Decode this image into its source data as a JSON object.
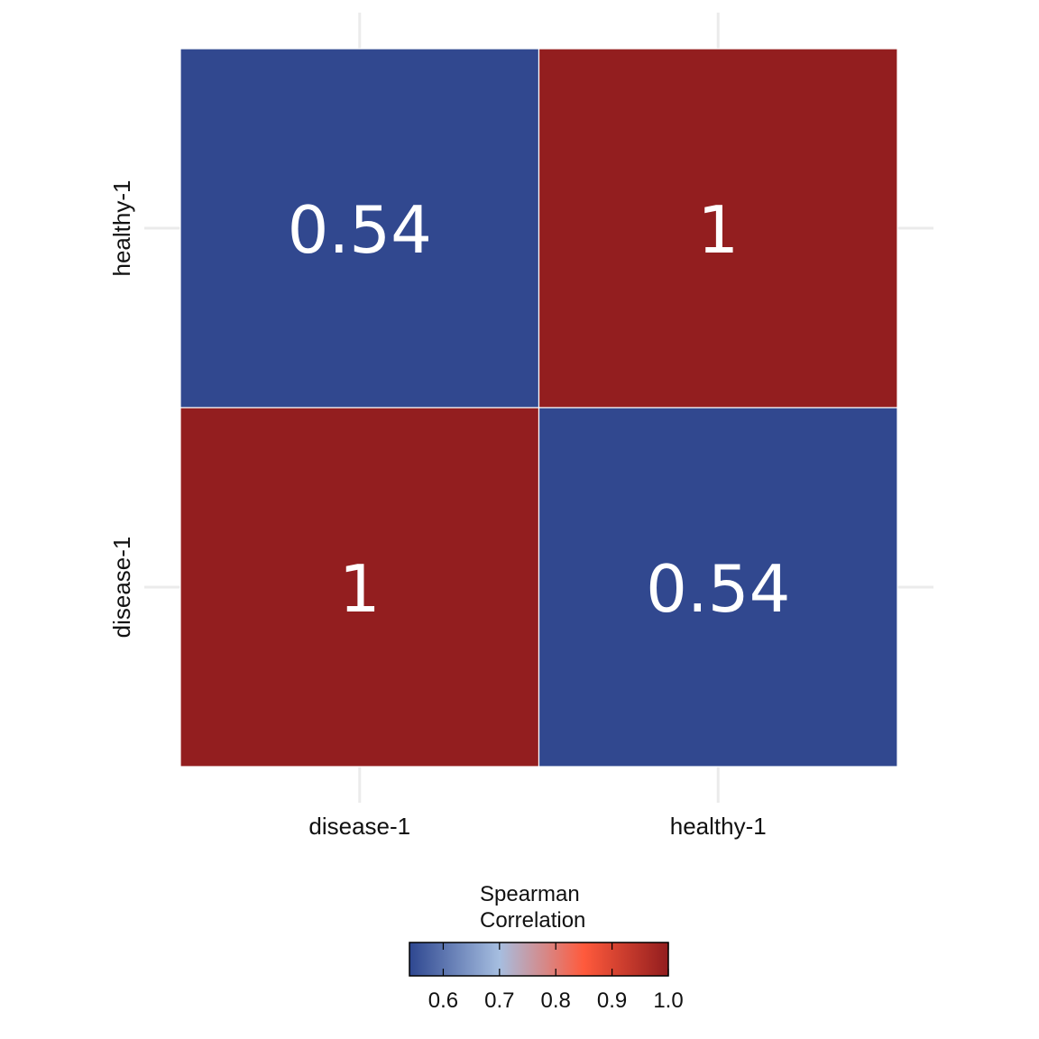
{
  "chart_data": {
    "type": "heatmap",
    "title": "",
    "xlabel": "",
    "ylabel": "",
    "x_categories": [
      "disease-1",
      "healthy-1"
    ],
    "y_categories": [
      "disease-1",
      "healthy-1"
    ],
    "cells": [
      {
        "x": "disease-1",
        "y": "healthy-1",
        "value": 0.54,
        "label": "0.54"
      },
      {
        "x": "healthy-1",
        "y": "healthy-1",
        "value": 1.0,
        "label": "1"
      },
      {
        "x": "disease-1",
        "y": "disease-1",
        "value": 1.0,
        "label": "1"
      },
      {
        "x": "healthy-1",
        "y": "disease-1",
        "value": 0.54,
        "label": "0.54"
      }
    ],
    "legend": {
      "title_lines": [
        "Spearman",
        "Correlation"
      ],
      "range": [
        0.54,
        1.0
      ],
      "ticks": [
        0.6,
        0.7,
        0.8,
        0.9,
        1.0
      ],
      "tick_labels": [
        "0.6",
        "0.7",
        "0.8",
        "0.9",
        "1.0"
      ],
      "placement": "bottom",
      "color_stops": [
        {
          "value": 0.54,
          "color": "#2E4790"
        },
        {
          "value": 0.7,
          "color": "#A6BEE0"
        },
        {
          "value": 0.85,
          "color": "#FF5A3C"
        },
        {
          "value": 1.0,
          "color": "#921D1E"
        }
      ]
    },
    "colors": {
      "low": "#31488F",
      "high": "#931E1F",
      "grid": "#EBEBEB",
      "cell_text": "#FFFFFF"
    },
    "grid": true
  }
}
